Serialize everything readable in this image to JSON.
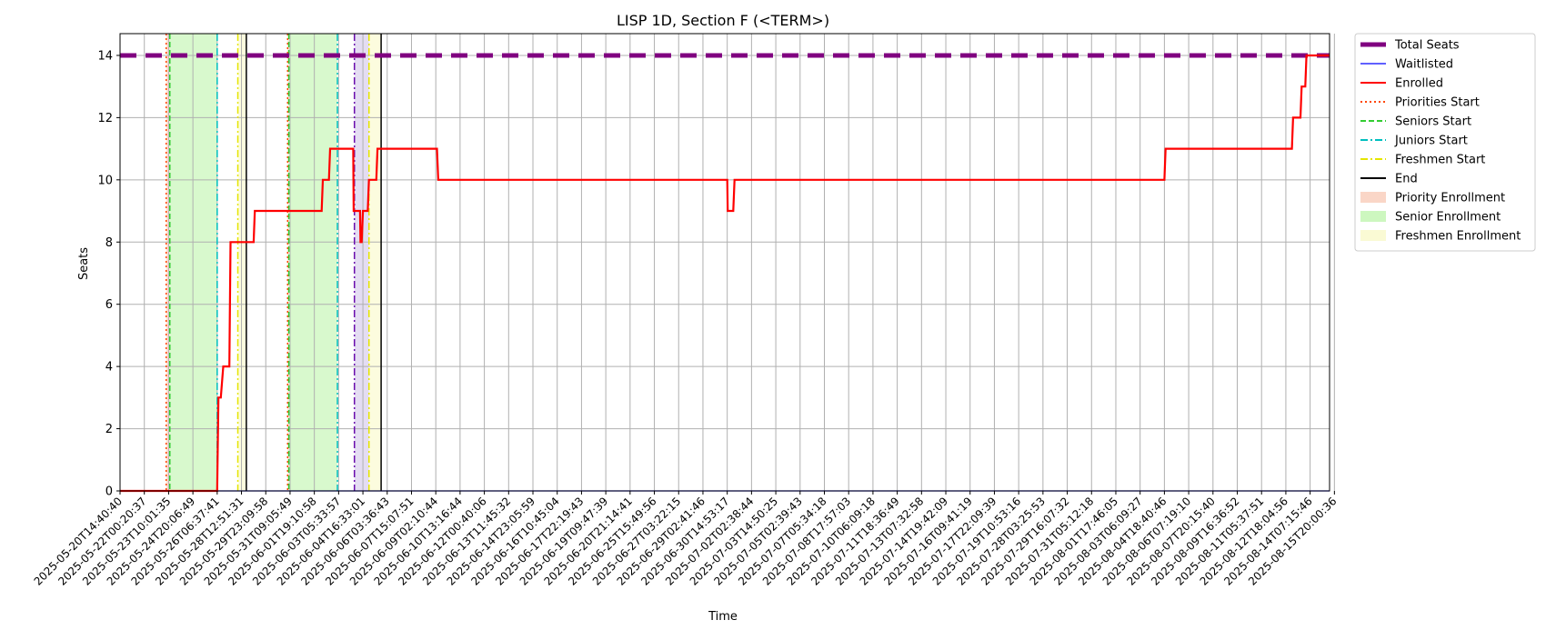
{
  "chart_data": {
    "type": "line",
    "title": "LISP 1D, Section F (<TERM>)",
    "xlabel": "Time",
    "ylabel": "Seats",
    "ylim": [
      0,
      14.7
    ],
    "yticks": [
      0,
      2,
      4,
      6,
      8,
      10,
      12,
      14
    ],
    "x_ticks": [
      "2025-05-20T14:40:40",
      "2025-05-22T00:20:37",
      "2025-05-23T10:01:35",
      "2025-05-24T20:06:49",
      "2025-05-26T06:37:41",
      "2025-05-28T12:51:31",
      "2025-05-29T23:09:58",
      "2025-05-31T09:05:49",
      "2025-06-01T19:10:58",
      "2025-06-03T05:33:57",
      "2025-06-04T16:33:01",
      "2025-06-06T03:36:43",
      "2025-06-07T15:07:51",
      "2025-06-09T02:10:44",
      "2025-06-10T13:16:44",
      "2025-06-12T00:40:06",
      "2025-06-13T11:45:32",
      "2025-06-14T23:05:59",
      "2025-06-16T10:45:04",
      "2025-06-17T22:19:43",
      "2025-06-19T09:47:39",
      "2025-06-20T21:14:41",
      "2025-06-25T15:49:56",
      "2025-06-27T03:22:15",
      "2025-06-29T02:41:46",
      "2025-06-30T14:53:17",
      "2025-07-02T02:38:44",
      "2025-07-03T14:50:25",
      "2025-07-05T02:39:43",
      "2025-07-07T05:34:18",
      "2025-07-08T17:57:03",
      "2025-07-10T06:09:18",
      "2025-07-11T18:36:49",
      "2025-07-13T07:32:58",
      "2025-07-14T19:42:09",
      "2025-07-16T09:41:19",
      "2025-07-17T22:09:39",
      "2025-07-19T10:53:16",
      "2025-07-28T03:25:53",
      "2025-07-29T16:07:32",
      "2025-07-31T05:12:18",
      "2025-08-01T17:46:05",
      "2025-08-03T06:09:27",
      "2025-08-04T18:40:46",
      "2025-08-06T07:19:10",
      "2025-08-07T20:15:40",
      "2025-08-09T16:36:52",
      "2025-08-11T05:37:51",
      "2025-08-12T18:04:56",
      "2025-08-14T07:15:46",
      "2025-08-15T20:00:36"
    ],
    "x_range": [
      0,
      49.8
    ],
    "series": [
      {
        "name": "Total Seats",
        "color": "#800080",
        "style": "dashed-thick",
        "x": [
          0,
          49.8
        ],
        "y": [
          14,
          14
        ]
      },
      {
        "name": "Waitlisted",
        "color": "#0000ff",
        "style": "solid-thin",
        "x": [
          0,
          49.8
        ],
        "y": [
          0,
          0
        ]
      },
      {
        "name": "Enrolled",
        "color": "#ff0000",
        "style": "solid",
        "x": [
          0,
          4,
          4.05,
          4.15,
          4.25,
          4.5,
          4.55,
          5.5,
          5.55,
          8.3,
          8.35,
          8.6,
          8.65,
          9.6,
          9.62,
          9.88,
          9.9,
          9.95,
          10,
          10.2,
          10.25,
          10.55,
          10.6,
          13.05,
          13.1,
          25,
          25.02,
          25.25,
          25.3,
          43,
          43.05,
          48.25,
          48.3,
          48.6,
          48.65,
          48.8,
          48.85,
          49.8
        ],
        "y": [
          0,
          0,
          3,
          3,
          4,
          4,
          8,
          8,
          9,
          9,
          10,
          10,
          11,
          11,
          9,
          9,
          8,
          8,
          9,
          9,
          10,
          10,
          11,
          11,
          10,
          10,
          9,
          9,
          10,
          10,
          11,
          11,
          12,
          12,
          13,
          13,
          14,
          14
        ]
      }
    ],
    "markers": [
      {
        "name": "Priorities Start",
        "color": "#ff4500",
        "style": "dotted",
        "x": [
          1.9,
          6.9
        ]
      },
      {
        "name": "Seniors Start",
        "color": "#32cd32",
        "style": "dashed",
        "x": [
          2.05,
          6.95
        ]
      },
      {
        "name": "Juniors Start",
        "color": "#00bfbf",
        "style": "dashdot",
        "x": [
          4,
          8.95
        ]
      },
      {
        "name": "Freshmen Start",
        "color": "#e5e500",
        "style": "dashdot",
        "x": [
          4.85,
          10.25
        ]
      },
      {
        "name": "End",
        "color": "#000000",
        "style": "solid",
        "x": [
          5.2,
          10.75
        ]
      }
    ],
    "regions": [
      {
        "name": "Priority Enrollment",
        "color": "#f4a582",
        "spans": [
          [
            1.9,
            2.05
          ],
          [
            6.9,
            6.95
          ]
        ]
      },
      {
        "name": "Senior Enrollment",
        "color": "#90ee70",
        "spans": [
          [
            2.05,
            4
          ],
          [
            6.95,
            8.95
          ]
        ]
      },
      {
        "name": "",
        "color": "#b39ddb",
        "spans": [
          [
            9.65,
            10.25
          ]
        ]
      },
      {
        "name": "Freshmen Enrollment",
        "color": "#f5f5a0",
        "spans": [
          [
            4.85,
            5.2
          ],
          [
            10.25,
            10.75
          ]
        ]
      }
    ],
    "region_edges": [
      {
        "color": "#6a0dad",
        "style": "dashdot",
        "x": 9.65
      }
    ],
    "legend": {
      "placement": "outside-right-top",
      "entries": [
        {
          "label": "Total Seats",
          "kind": "line",
          "color": "#800080",
          "style": "thick"
        },
        {
          "label": "Waitlisted",
          "kind": "line",
          "color": "#0000ff",
          "style": "thin"
        },
        {
          "label": "Enrolled",
          "kind": "line",
          "color": "#ff0000",
          "style": "solid"
        },
        {
          "label": "Priorities Start",
          "kind": "line",
          "color": "#ff4500",
          "style": "dotted"
        },
        {
          "label": "Seniors Start",
          "kind": "line",
          "color": "#32cd32",
          "style": "dashed"
        },
        {
          "label": "Juniors Start",
          "kind": "line",
          "color": "#00bfbf",
          "style": "dashdot"
        },
        {
          "label": "Freshmen Start",
          "kind": "line",
          "color": "#e5e500",
          "style": "dashdot"
        },
        {
          "label": "End",
          "kind": "line",
          "color": "#000000",
          "style": "solid"
        },
        {
          "label": "Priority Enrollment",
          "kind": "patch",
          "color": "#f4a582"
        },
        {
          "label": "Senior Enrollment",
          "kind": "patch",
          "color": "#90ee70"
        },
        {
          "label": "Freshmen Enrollment",
          "kind": "patch",
          "color": "#f5f5a0"
        }
      ]
    },
    "grid": true
  }
}
